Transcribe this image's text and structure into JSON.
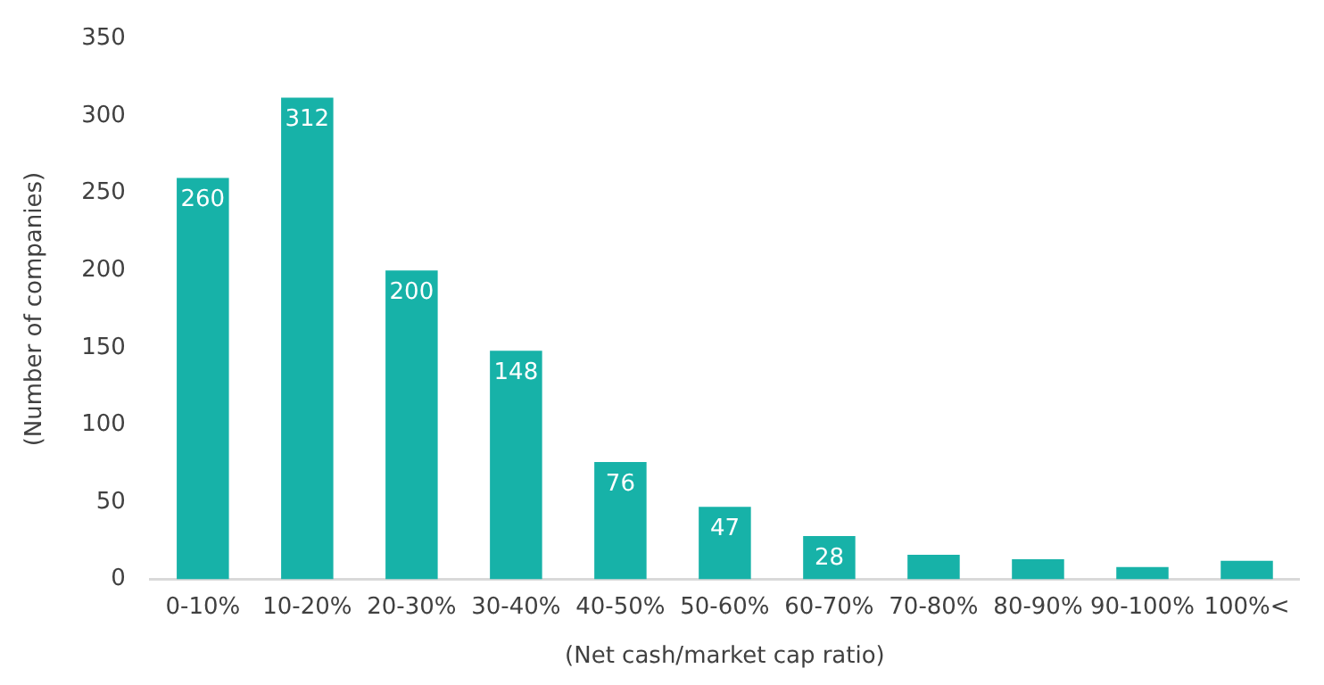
{
  "chart_data": {
    "type": "bar",
    "xlabel": "(Net cash/market cap ratio)",
    "ylabel": "(Number of companies)",
    "categories": [
      "0-10%",
      "10-20%",
      "20-30%",
      "30-40%",
      "40-50%",
      "50-60%",
      "60-70%",
      "70-80%",
      "80-90%",
      "90-100%",
      "100%<"
    ],
    "values": [
      260,
      312,
      200,
      148,
      76,
      47,
      28,
      16,
      13,
      8,
      12
    ],
    "value_labels": [
      "260",
      "312",
      "200",
      "148",
      "76",
      "47",
      "28",
      null,
      null,
      null,
      null
    ],
    "color": "#17b2a8",
    "ylim": [
      0,
      350
    ],
    "yticks": [
      0,
      50,
      100,
      150,
      200,
      250,
      300,
      350
    ],
    "grid": false,
    "legend": false
  }
}
